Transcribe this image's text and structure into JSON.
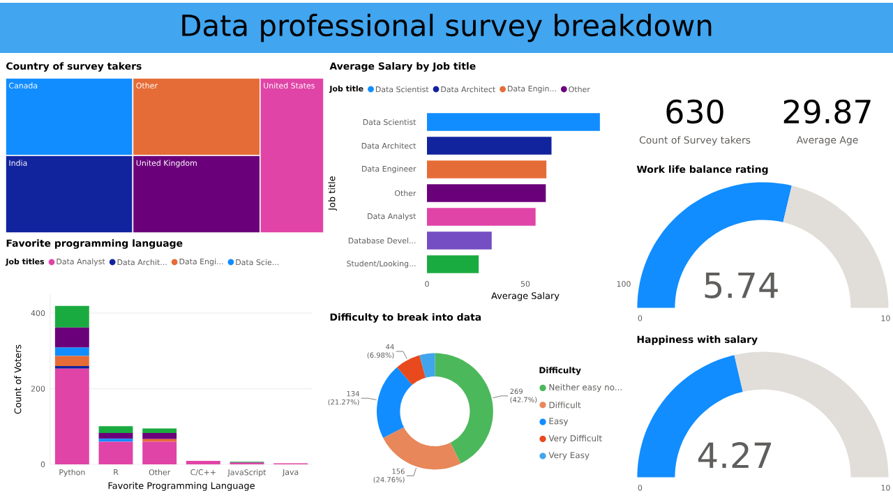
{
  "chart_data": [
    {
      "type": "other",
      "title": "Data professional survey breakdown"
    },
    {
      "type": "other",
      "title": "Country of survey takers",
      "categories": [
        "Canada",
        "India",
        "Other",
        "United Kingdom",
        "United States"
      ],
      "colors": [
        "#118dff",
        "#12239e",
        "#e66c37",
        "#6b007b",
        "#e044a7"
      ]
    },
    {
      "type": "bar",
      "title": "Average Salary by Job title",
      "orientation": "horizontal",
      "legend_title": "Job title",
      "legend": "top left",
      "xlabel": "Average Salary",
      "ylabel": "Job title",
      "categories": [
        "Data Scientist",
        "Data Architect",
        "Data Engineer",
        "Other",
        "Data Analyst",
        "Database Devel...",
        "Student/Looking..."
      ],
      "series": [
        {
          "name": "Data Scientist",
          "color": "#118dff",
          "values": [
            87.9,
            null,
            null,
            null,
            null,
            null,
            null
          ]
        },
        {
          "name": "Data Architect",
          "color": "#12239e",
          "values": [
            null,
            63.3,
            null,
            null,
            null,
            null,
            null
          ]
        },
        {
          "name": "Data Engin...",
          "color": "#e66c37",
          "values": [
            null,
            null,
            60.7,
            null,
            null,
            null,
            null
          ]
        },
        {
          "name": "Other",
          "color": "#6b007b",
          "values": [
            null,
            null,
            null,
            60.4,
            null,
            null,
            null
          ]
        },
        {
          "color": "#e044a7",
          "values": [
            null,
            null,
            null,
            null,
            55.2,
            null,
            null
          ]
        },
        {
          "color": "#744ec2",
          "values": [
            null,
            null,
            null,
            null,
            null,
            32.9,
            null
          ]
        },
        {
          "color": "#1aab40",
          "values": [
            null,
            null,
            null,
            null,
            null,
            null,
            26.3
          ]
        }
      ],
      "xlim": [
        0,
        100
      ],
      "xticks": [
        0,
        50,
        100
      ]
    },
    {
      "type": "other",
      "annotations": [
        "630",
        "Count of Survey takers",
        "29.87",
        "Average Age"
      ]
    },
    {
      "type": "bar",
      "title": "Favorite programming language",
      "stacked": true,
      "legend_title": "Job titles",
      "legend": "top left",
      "grid": "y",
      "xlabel": "Favorite Programming Language",
      "ylabel": "Count of Voters",
      "categories": [
        "Python",
        "R",
        "Other",
        "C/C++",
        "JavaScript",
        "Java"
      ],
      "series": [
        {
          "name": "Data Analyst",
          "color": "#e044a7",
          "values": [
            253,
            60,
            60,
            9,
            4,
            3
          ]
        },
        {
          "name": "Data Archit...",
          "color": "#12239e",
          "values": [
            7,
            0,
            0,
            0,
            0,
            0
          ]
        },
        {
          "name": "Data Engi...",
          "color": "#e66c37",
          "values": [
            27,
            0,
            7,
            0,
            0,
            0
          ]
        },
        {
          "name": "Data Scie...",
          "color": "#118dff",
          "values": [
            22,
            8,
            0,
            0,
            0,
            0
          ]
        },
        {
          "color": "#6b007b",
          "values": [
            53,
            15,
            16,
            0,
            1,
            0
          ]
        },
        {
          "color": "#1aab40",
          "values": [
            57,
            18,
            12,
            0,
            2,
            0
          ]
        }
      ],
      "ylim": [
        0,
        450
      ],
      "yticks": [
        0,
        200,
        400
      ]
    },
    {
      "type": "donut",
      "title": "Difficulty to break into data",
      "legend_title": "Difficulty",
      "legend": "right",
      "categories": [
        "Neither easy no...",
        "Difficult",
        "Easy",
        "Very Difficult",
        "Very Easy"
      ],
      "values": [
        269,
        156,
        134,
        44,
        27
      ],
      "colors": [
        "#4cb85c",
        "#e8875a",
        "#118dff",
        "#e8491d",
        "#41a5ee"
      ],
      "value_labels": [
        "269 (42.7%)",
        "156 (24.76%)",
        "134 (21.27%)",
        "44 (6.98%)",
        null
      ]
    },
    {
      "type": "donut",
      "title": "Work life balance rating",
      "categories": [
        null,
        null
      ],
      "values": [
        5.74,
        4.26
      ],
      "colors": [
        "#118dff",
        "#e1ddd9"
      ],
      "value_labels": [
        "5.74",
        null
      ],
      "annotations": [
        "0",
        "10"
      ]
    },
    {
      "type": "donut",
      "title": "Happiness with salary",
      "categories": [
        null,
        null
      ],
      "values": [
        4.27,
        5.73
      ],
      "colors": [
        "#118dff",
        "#e1ddd9"
      ],
      "value_labels": [
        "4.27",
        null
      ],
      "annotations": [
        "0",
        "10"
      ]
    }
  ]
}
